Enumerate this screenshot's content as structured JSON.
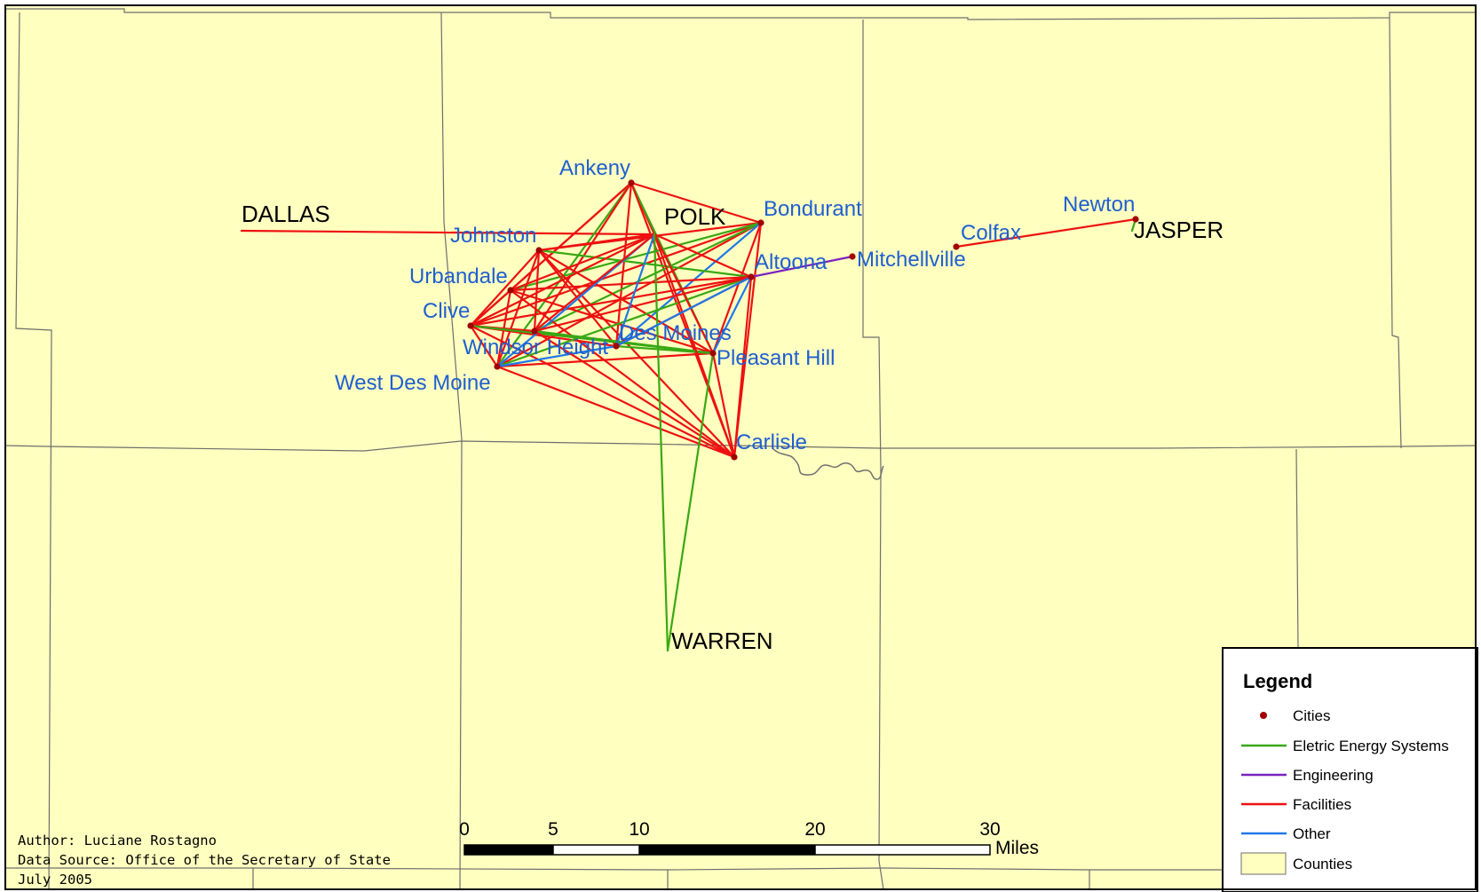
{
  "colors": {
    "county_fill": "#ffffc0",
    "county_border": "#6e6e6e",
    "city_dot": "#a00000",
    "city_label": "#1f5fd1",
    "eletric": "#38a814",
    "engineering": "#7a22c0",
    "facilities": "#ee1111",
    "other": "#1e78e8"
  },
  "counties": [
    {
      "id": "dallas",
      "name": "DALLAS"
    },
    {
      "id": "polk",
      "name": "POLK"
    },
    {
      "id": "jasper",
      "name": "JASPER"
    },
    {
      "id": "warren",
      "name": "WARREN"
    }
  ],
  "cities": [
    {
      "id": "ankeny",
      "name": "Ankeny"
    },
    {
      "id": "bondurant",
      "name": "Bondurant"
    },
    {
      "id": "johnston",
      "name": "Johnston"
    },
    {
      "id": "altoona",
      "name": "Altoona"
    },
    {
      "id": "mitchellville",
      "name": "Mitchellville"
    },
    {
      "id": "colfax",
      "name": "Colfax"
    },
    {
      "id": "newton",
      "name": "Newton"
    },
    {
      "id": "urbandale",
      "name": "Urbandale"
    },
    {
      "id": "clive",
      "name": "Clive"
    },
    {
      "id": "des_moines",
      "name": "Des Moines"
    },
    {
      "id": "windsor_heights",
      "name": "Windsor Height"
    },
    {
      "id": "pleasant_hill",
      "name": "Pleasant Hill"
    },
    {
      "id": "west_des_moines",
      "name": "West Des Moine"
    },
    {
      "id": "carlisle",
      "name": "Carlisle"
    }
  ],
  "connections": [
    {
      "from": "dallas_pt",
      "to": "polk_pt",
      "type": "facilities"
    },
    {
      "from": "ankeny",
      "to": "polk_pt",
      "type": "facilities"
    },
    {
      "from": "ankeny",
      "to": "clive",
      "type": "facilities"
    },
    {
      "from": "ankeny",
      "to": "urbandale",
      "type": "facilities"
    },
    {
      "from": "ankeny",
      "to": "west_des_moines",
      "type": "eletric"
    },
    {
      "from": "ankeny",
      "to": "windsor_heights",
      "type": "facilities"
    },
    {
      "from": "ankeny",
      "to": "des_moines",
      "type": "facilities"
    },
    {
      "from": "ankeny",
      "to": "pleasant_hill",
      "type": "eletric"
    },
    {
      "from": "ankeny",
      "to": "carlisle",
      "type": "facilities"
    },
    {
      "from": "ankeny",
      "to": "bondurant",
      "type": "facilities"
    },
    {
      "from": "bondurant",
      "to": "clive",
      "type": "facilities"
    },
    {
      "from": "bondurant",
      "to": "johnston",
      "type": "facilities"
    },
    {
      "from": "bondurant",
      "to": "urbandale",
      "type": "eletric"
    },
    {
      "from": "bondurant",
      "to": "west_des_moines",
      "type": "facilities"
    },
    {
      "from": "bondurant",
      "to": "windsor_heights",
      "type": "eletric"
    },
    {
      "from": "bondurant",
      "to": "des_moines",
      "type": "other"
    },
    {
      "from": "bondurant",
      "to": "pleasant_hill",
      "type": "facilities"
    },
    {
      "from": "bondurant",
      "to": "carlisle",
      "type": "facilities"
    },
    {
      "from": "johnston",
      "to": "clive",
      "type": "facilities"
    },
    {
      "from": "johnston",
      "to": "altoona",
      "type": "eletric"
    },
    {
      "from": "johnston",
      "to": "west_des_moines",
      "type": "facilities"
    },
    {
      "from": "johnston",
      "to": "windsor_heights",
      "type": "facilities"
    },
    {
      "from": "johnston",
      "to": "des_moines",
      "type": "facilities"
    },
    {
      "from": "johnston",
      "to": "pleasant_hill",
      "type": "facilities"
    },
    {
      "from": "johnston",
      "to": "carlisle",
      "type": "facilities"
    },
    {
      "from": "johnston",
      "to": "polk_pt",
      "type": "facilities"
    },
    {
      "from": "urbandale",
      "to": "altoona",
      "type": "facilities"
    },
    {
      "from": "urbandale",
      "to": "clive",
      "type": "facilities"
    },
    {
      "from": "urbandale",
      "to": "west_des_moines",
      "type": "facilities"
    },
    {
      "from": "urbandale",
      "to": "pleasant_hill",
      "type": "facilities"
    },
    {
      "from": "urbandale",
      "to": "carlisle",
      "type": "facilities"
    },
    {
      "from": "urbandale",
      "to": "polk_pt",
      "type": "facilities"
    },
    {
      "from": "clive",
      "to": "altoona",
      "type": "facilities"
    },
    {
      "from": "clive",
      "to": "west_des_moines",
      "type": "facilities"
    },
    {
      "from": "clive",
      "to": "windsor_heights",
      "type": "facilities"
    },
    {
      "from": "clive",
      "to": "des_moines",
      "type": "facilities"
    },
    {
      "from": "clive",
      "to": "pleasant_hill",
      "type": "eletric"
    },
    {
      "from": "clive",
      "to": "carlisle",
      "type": "facilities"
    },
    {
      "from": "clive",
      "to": "polk_pt",
      "type": "facilities"
    },
    {
      "from": "west_des_moines",
      "to": "altoona",
      "type": "eletric"
    },
    {
      "from": "west_des_moines",
      "to": "pleasant_hill",
      "type": "facilities"
    },
    {
      "from": "west_des_moines",
      "to": "carlisle",
      "type": "facilities"
    },
    {
      "from": "west_des_moines",
      "to": "polk_pt",
      "type": "other"
    },
    {
      "from": "west_des_moines",
      "to": "des_moines",
      "type": "other"
    },
    {
      "from": "windsor_heights",
      "to": "pleasant_hill",
      "type": "eletric"
    },
    {
      "from": "windsor_heights",
      "to": "carlisle",
      "type": "facilities"
    },
    {
      "from": "windsor_heights",
      "to": "altoona",
      "type": "facilities"
    },
    {
      "from": "windsor_heights",
      "to": "polk_pt",
      "type": "facilities"
    },
    {
      "from": "des_moines",
      "to": "pleasant_hill",
      "type": "eletric"
    },
    {
      "from": "des_moines",
      "to": "polk_pt",
      "type": "other"
    },
    {
      "from": "des_moines",
      "to": "altoona",
      "type": "facilities"
    },
    {
      "from": "polk_pt",
      "to": "altoona",
      "type": "facilities"
    },
    {
      "from": "polk_pt",
      "to": "pleasant_hill",
      "type": "facilities"
    },
    {
      "from": "polk_pt",
      "to": "carlisle",
      "type": "facilities"
    },
    {
      "from": "polk_pt",
      "to": "warren_pt",
      "type": "eletric"
    },
    {
      "from": "altoona",
      "to": "pleasant_hill",
      "type": "other"
    },
    {
      "from": "altoona",
      "to": "carlisle",
      "type": "facilities"
    },
    {
      "from": "altoona",
      "to": "des_moines",
      "type": "other"
    },
    {
      "from": "altoona",
      "to": "mitchellville",
      "type": "engineering"
    },
    {
      "from": "pleasant_hill",
      "to": "carlisle",
      "type": "facilities"
    },
    {
      "from": "pleasant_hill",
      "to": "warren_pt",
      "type": "eletric"
    },
    {
      "from": "colfax",
      "to": "newton",
      "type": "facilities"
    },
    {
      "from": "newton",
      "to": "jasper_pt",
      "type": "eletric"
    }
  ],
  "legend": {
    "title": "Legend",
    "items": [
      {
        "key": "cities",
        "label": "Cities"
      },
      {
        "key": "eletric",
        "label": "Eletric Energy Systems"
      },
      {
        "key": "engineering",
        "label": "Engineering"
      },
      {
        "key": "facilities",
        "label": "Facilities"
      },
      {
        "key": "other",
        "label": "Other"
      },
      {
        "key": "counties",
        "label": "Counties"
      }
    ]
  },
  "scale_bar": {
    "ticks": [
      "0",
      "5",
      "10",
      "20",
      "30"
    ],
    "unit": "Miles"
  },
  "credits": {
    "author": "Author: Luciane Rostagno",
    "source": "Data Source: Office of the Secretary of State",
    "date": "July 2005"
  }
}
